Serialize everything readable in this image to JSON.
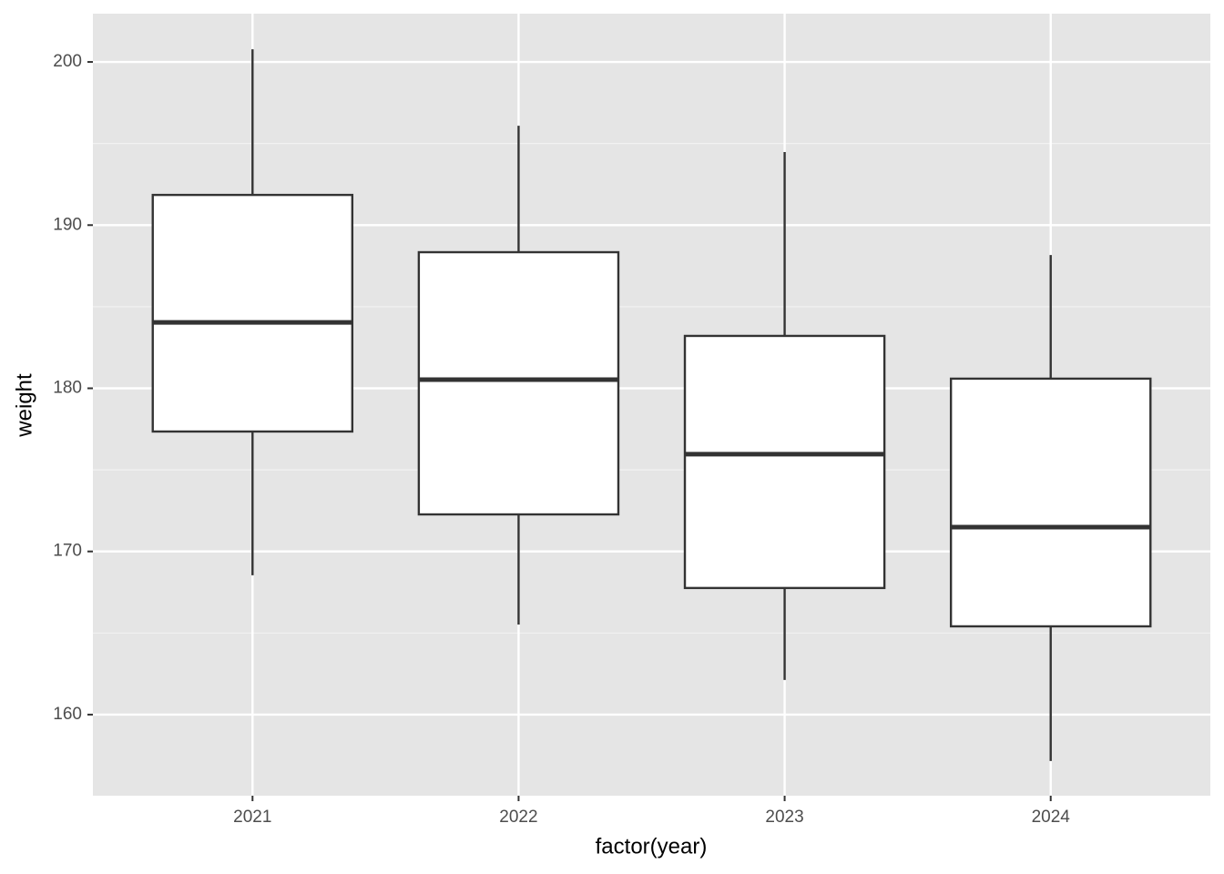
{
  "chart_data": {
    "type": "box",
    "x_label": "factor(year)",
    "y_label": "weight",
    "categories": [
      "2021",
      "2022",
      "2023",
      "2024"
    ],
    "min": [
      168.54,
      165.52,
      162.12,
      157.16
    ],
    "q1": [
      177.35,
      172.27,
      167.76,
      165.41
    ],
    "median": [
      184.04,
      180.53,
      175.96,
      171.49
    ],
    "q3": [
      191.85,
      188.34,
      183.21,
      180.59
    ],
    "max": [
      200.78,
      196.09,
      194.48,
      188.17
    ],
    "ylim": [
      155.03,
      202.96
    ],
    "yticks": [
      160,
      170,
      180,
      190,
      200
    ],
    "grid": true,
    "color": "#ffffff"
  }
}
